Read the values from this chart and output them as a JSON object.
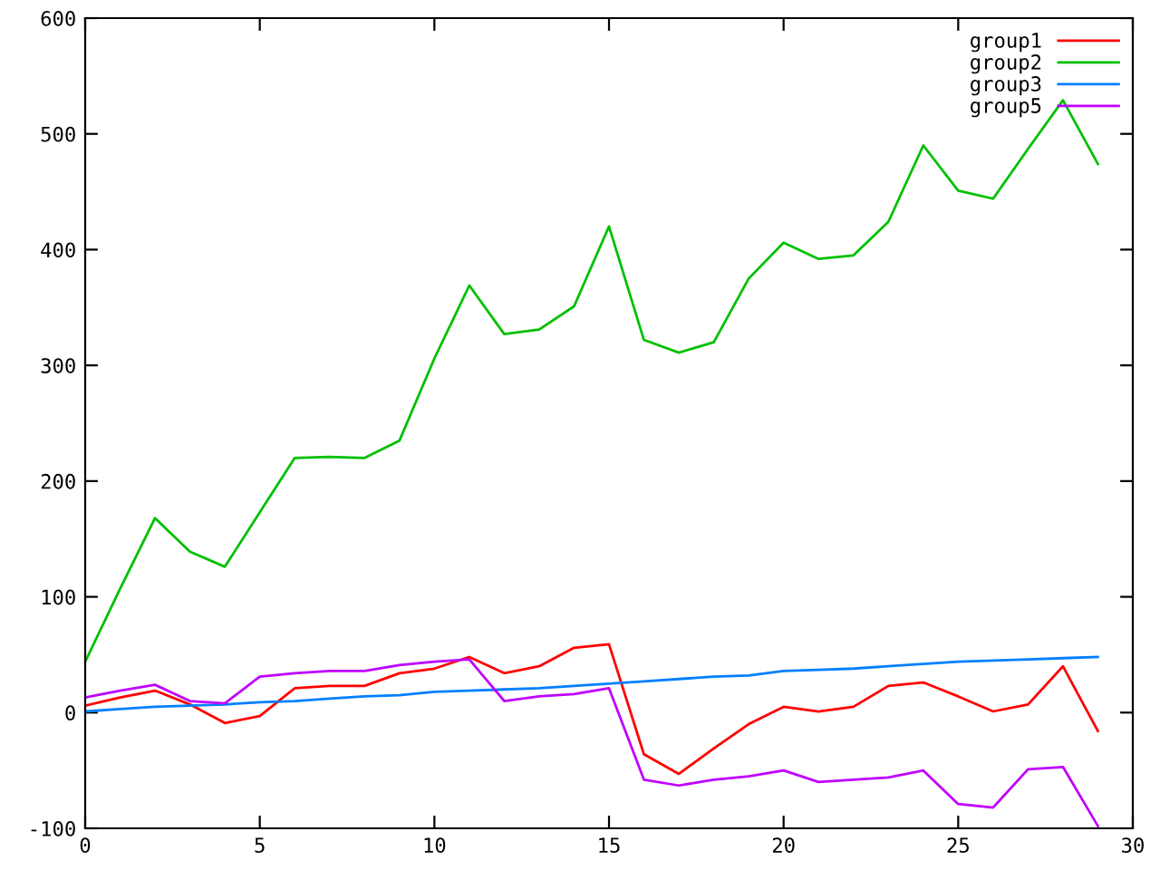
{
  "chart_data": {
    "type": "line",
    "x": [
      0,
      1,
      2,
      3,
      4,
      5,
      6,
      7,
      8,
      9,
      10,
      11,
      12,
      13,
      14,
      15,
      16,
      17,
      18,
      19,
      20,
      21,
      22,
      23,
      24,
      25,
      26,
      27,
      28,
      29
    ],
    "series": [
      {
        "name": "group1",
        "color": "#ff0000",
        "values": [
          6,
          13,
          19,
          7,
          -9,
          -3,
          21,
          23,
          23,
          34,
          38,
          48,
          34,
          40,
          56,
          59,
          -36,
          -53,
          -31,
          -10,
          5,
          1,
          5,
          23,
          26,
          14,
          1,
          7,
          40,
          -16
        ]
      },
      {
        "name": "group2",
        "color": "#00c000",
        "values": [
          44,
          107,
          168,
          139,
          126,
          173,
          220,
          221,
          220,
          235,
          306,
          369,
          327,
          331,
          351,
          420,
          322,
          311,
          320,
          375,
          406,
          392,
          395,
          424,
          490,
          451,
          444,
          487,
          529,
          474
        ]
      },
      {
        "name": "group3",
        "color": "#0080ff",
        "values": [
          1,
          3,
          5,
          6,
          7,
          9,
          10,
          12,
          14,
          15,
          18,
          19,
          20,
          21,
          23,
          25,
          27,
          29,
          31,
          32,
          36,
          37,
          38,
          40,
          42,
          44,
          45,
          46,
          47,
          48
        ]
      },
      {
        "name": "group5",
        "color": "#c000ff",
        "values": [
          13,
          19,
          24,
          10,
          8,
          31,
          34,
          36,
          36,
          41,
          44,
          46,
          10,
          14,
          16,
          21,
          -58,
          -63,
          -58,
          -55,
          -50,
          -60,
          -58,
          -56,
          -50,
          -79,
          -82,
          -49,
          -47,
          -98
        ]
      }
    ],
    "xlim": [
      0,
      30
    ],
    "xticks": [
      0,
      5,
      10,
      15,
      20,
      25,
      30
    ],
    "ylim": [
      -100,
      600
    ],
    "yticks": [
      -100,
      0,
      100,
      200,
      300,
      400,
      500,
      600
    ],
    "grid": false,
    "legend": "top right",
    "marker": "none",
    "line_style": "solid"
  }
}
